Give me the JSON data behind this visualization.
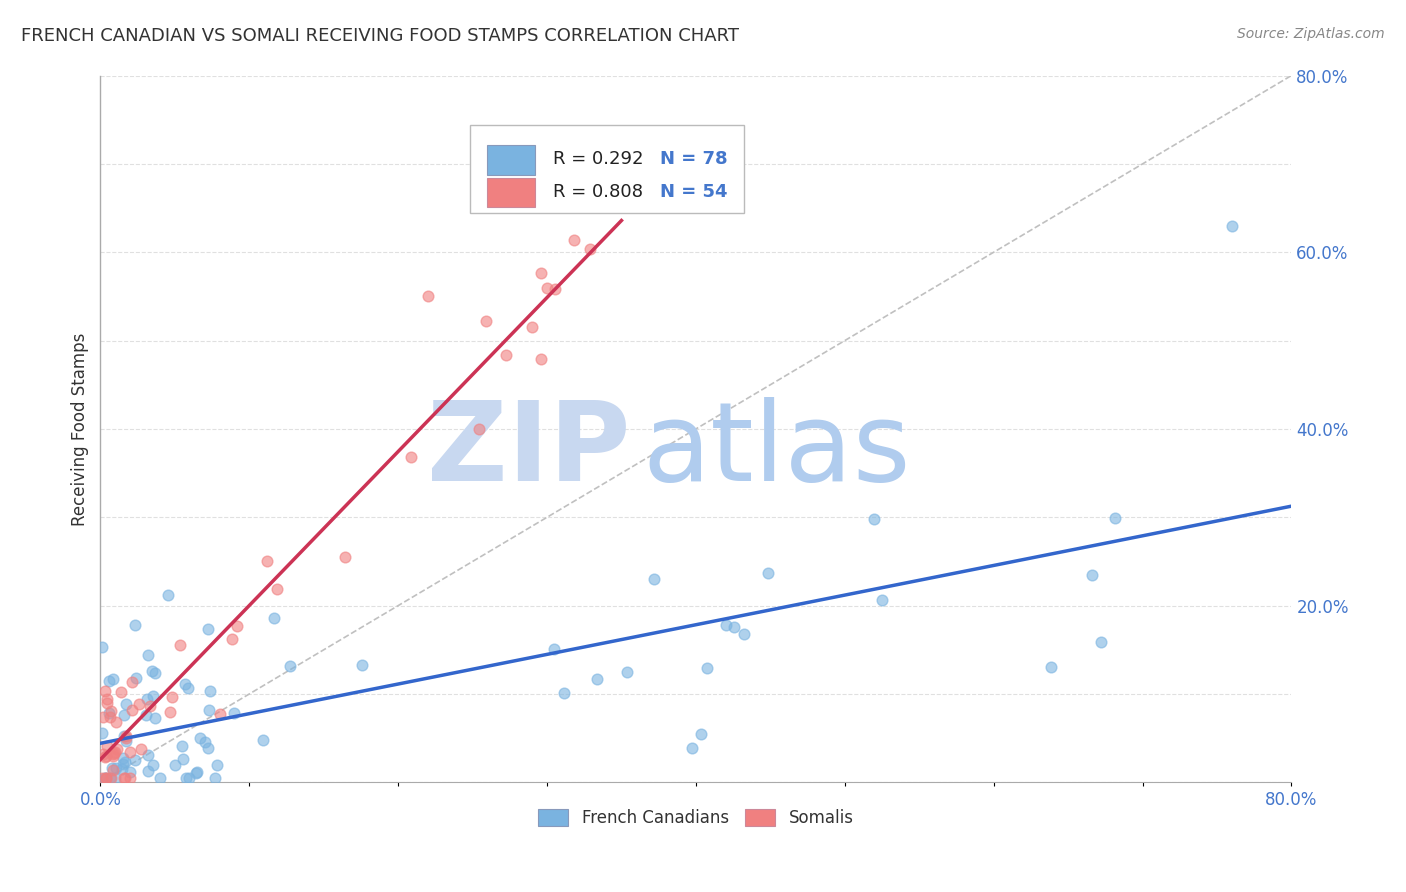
{
  "title": "FRENCH CANADIAN VS SOMALI RECEIVING FOOD STAMPS CORRELATION CHART",
  "source": "Source: ZipAtlas.com",
  "ylabel": "Receiving Food Stamps",
  "xlim": [
    0.0,
    0.8
  ],
  "ylim": [
    0.0,
    0.8
  ],
  "blue_color": "#7ab3e0",
  "pink_color": "#f08080",
  "blue_line_color": "#3366cc",
  "pink_line_color": "#cc3355",
  "diag_color": "#c0c0c0",
  "watermark_color_zip": "#c5d8ee",
  "watermark_color_atlas": "#a8c8e8",
  "legend_R_blue": "R = 0.292",
  "legend_N_blue": "N = 78",
  "legend_R_pink": "R = 0.808",
  "legend_N_pink": "N = 54",
  "background_color": "#ffffff",
  "grid_color": "#dddddd",
  "tick_label_color": "#4477cc",
  "title_color": "#333333",
  "source_color": "#888888",
  "ylabel_color": "#333333"
}
